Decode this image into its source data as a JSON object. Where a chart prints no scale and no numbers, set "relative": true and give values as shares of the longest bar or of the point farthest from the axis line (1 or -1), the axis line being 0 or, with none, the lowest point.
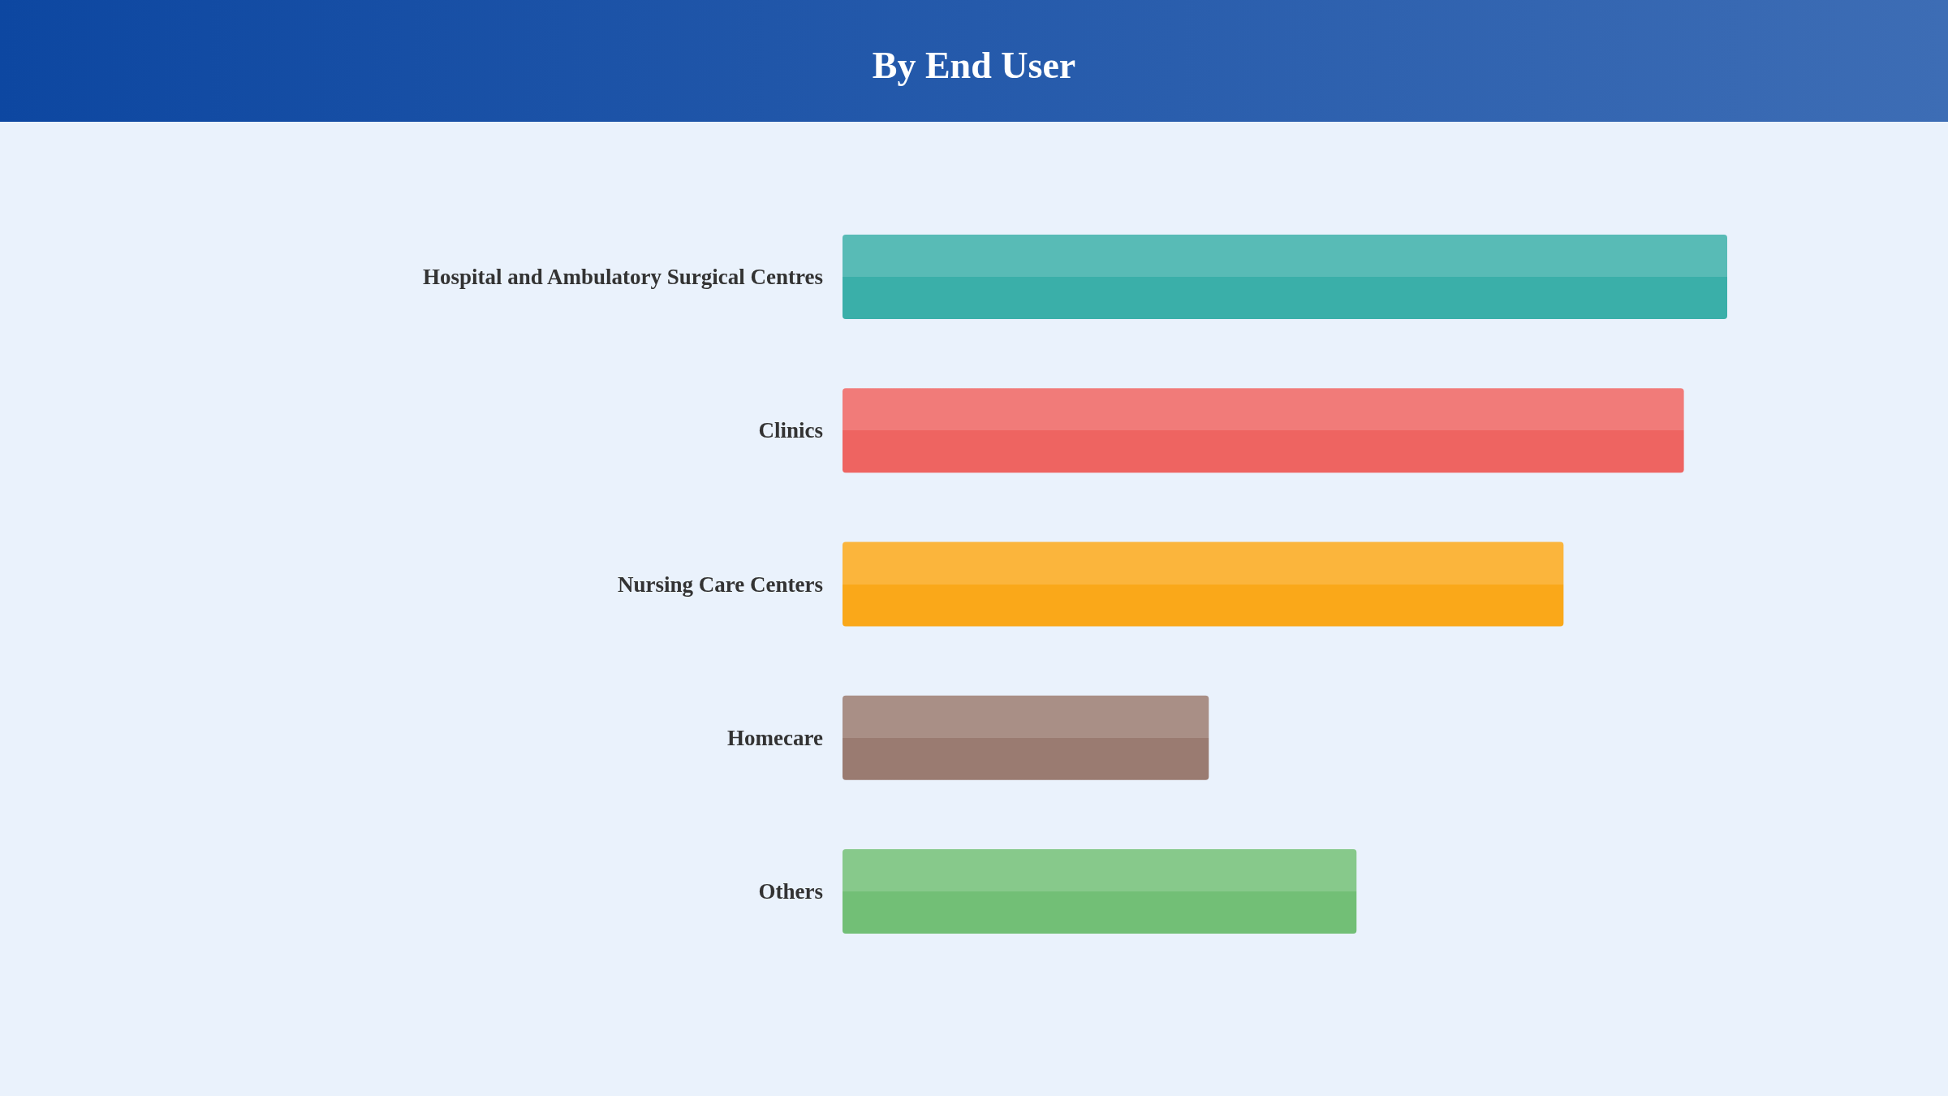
{
  "chart_data": {
    "type": "bar",
    "orientation": "horizontal",
    "relative": true,
    "title": "By End User",
    "categories": [
      "Hospital and Ambulatory Surgical Centres",
      "Clinics",
      "Nursing Care Centers",
      "Homecare",
      "Others"
    ],
    "values": [
      1,
      0.951,
      0.815,
      0.414,
      0.581
    ],
    "colors": [
      "#3aafa9",
      "#ee6461",
      "#faa819",
      "#9a7b71",
      "#72bf76"
    ]
  }
}
